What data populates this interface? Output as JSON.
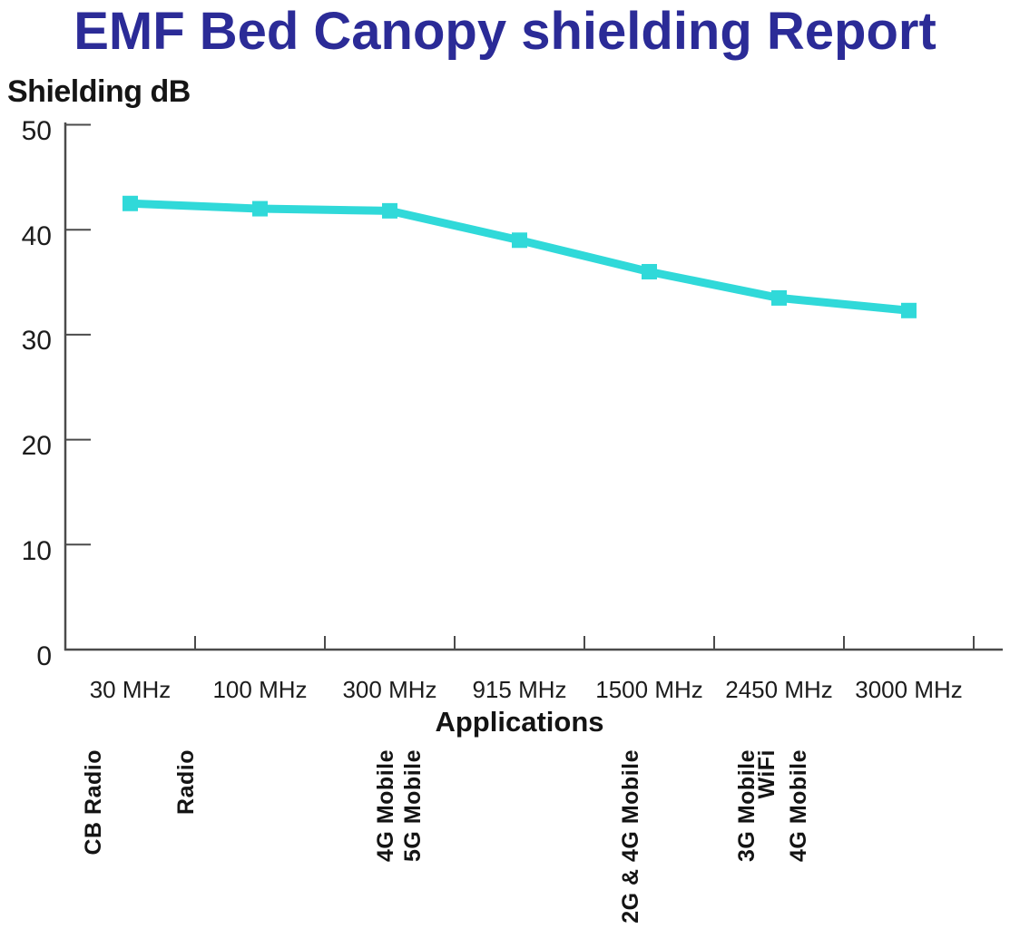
{
  "chart_data": {
    "type": "line",
    "title": "EMF Bed Canopy shielding Report",
    "ylabel": "Shielding dB",
    "xlabel": "Applications",
    "categories": [
      "30 MHz",
      "100 MHz",
      "300 MHz",
      "915 MHz",
      "1500 MHz",
      "2450 MHz",
      "3000 MHz"
    ],
    "series": [
      {
        "name": "Shielding dB",
        "values": [
          42.5,
          42,
          41.8,
          39,
          36,
          33.5,
          32.3
        ]
      }
    ],
    "ytick_labels": [
      "50",
      "40",
      "30",
      "20",
      "10",
      "0"
    ],
    "yticks": [
      50,
      40,
      30,
      20,
      10,
      0
    ],
    "ylim": [
      0,
      50
    ],
    "grid": false,
    "legend": "none",
    "marker": "square",
    "applications": [
      {
        "category": "30 MHz",
        "labels": [
          "CB Radio"
        ]
      },
      {
        "category": "100 MHz",
        "labels": [
          "Radio"
        ]
      },
      {
        "category": "300 MHz",
        "labels": [
          "4G Mobile",
          "5G Mobile"
        ]
      },
      {
        "category": "1500 MHz",
        "labels": [
          "2G & 4G Mobile"
        ]
      },
      {
        "category": "2450 MHz",
        "labels": [
          "3G Mobile",
          "WiFi",
          "4G Mobile"
        ]
      }
    ]
  },
  "colors": {
    "title": "#2b2b97",
    "line": "#30d9d9",
    "axis": "#4b4b4b",
    "text": "#141414"
  }
}
